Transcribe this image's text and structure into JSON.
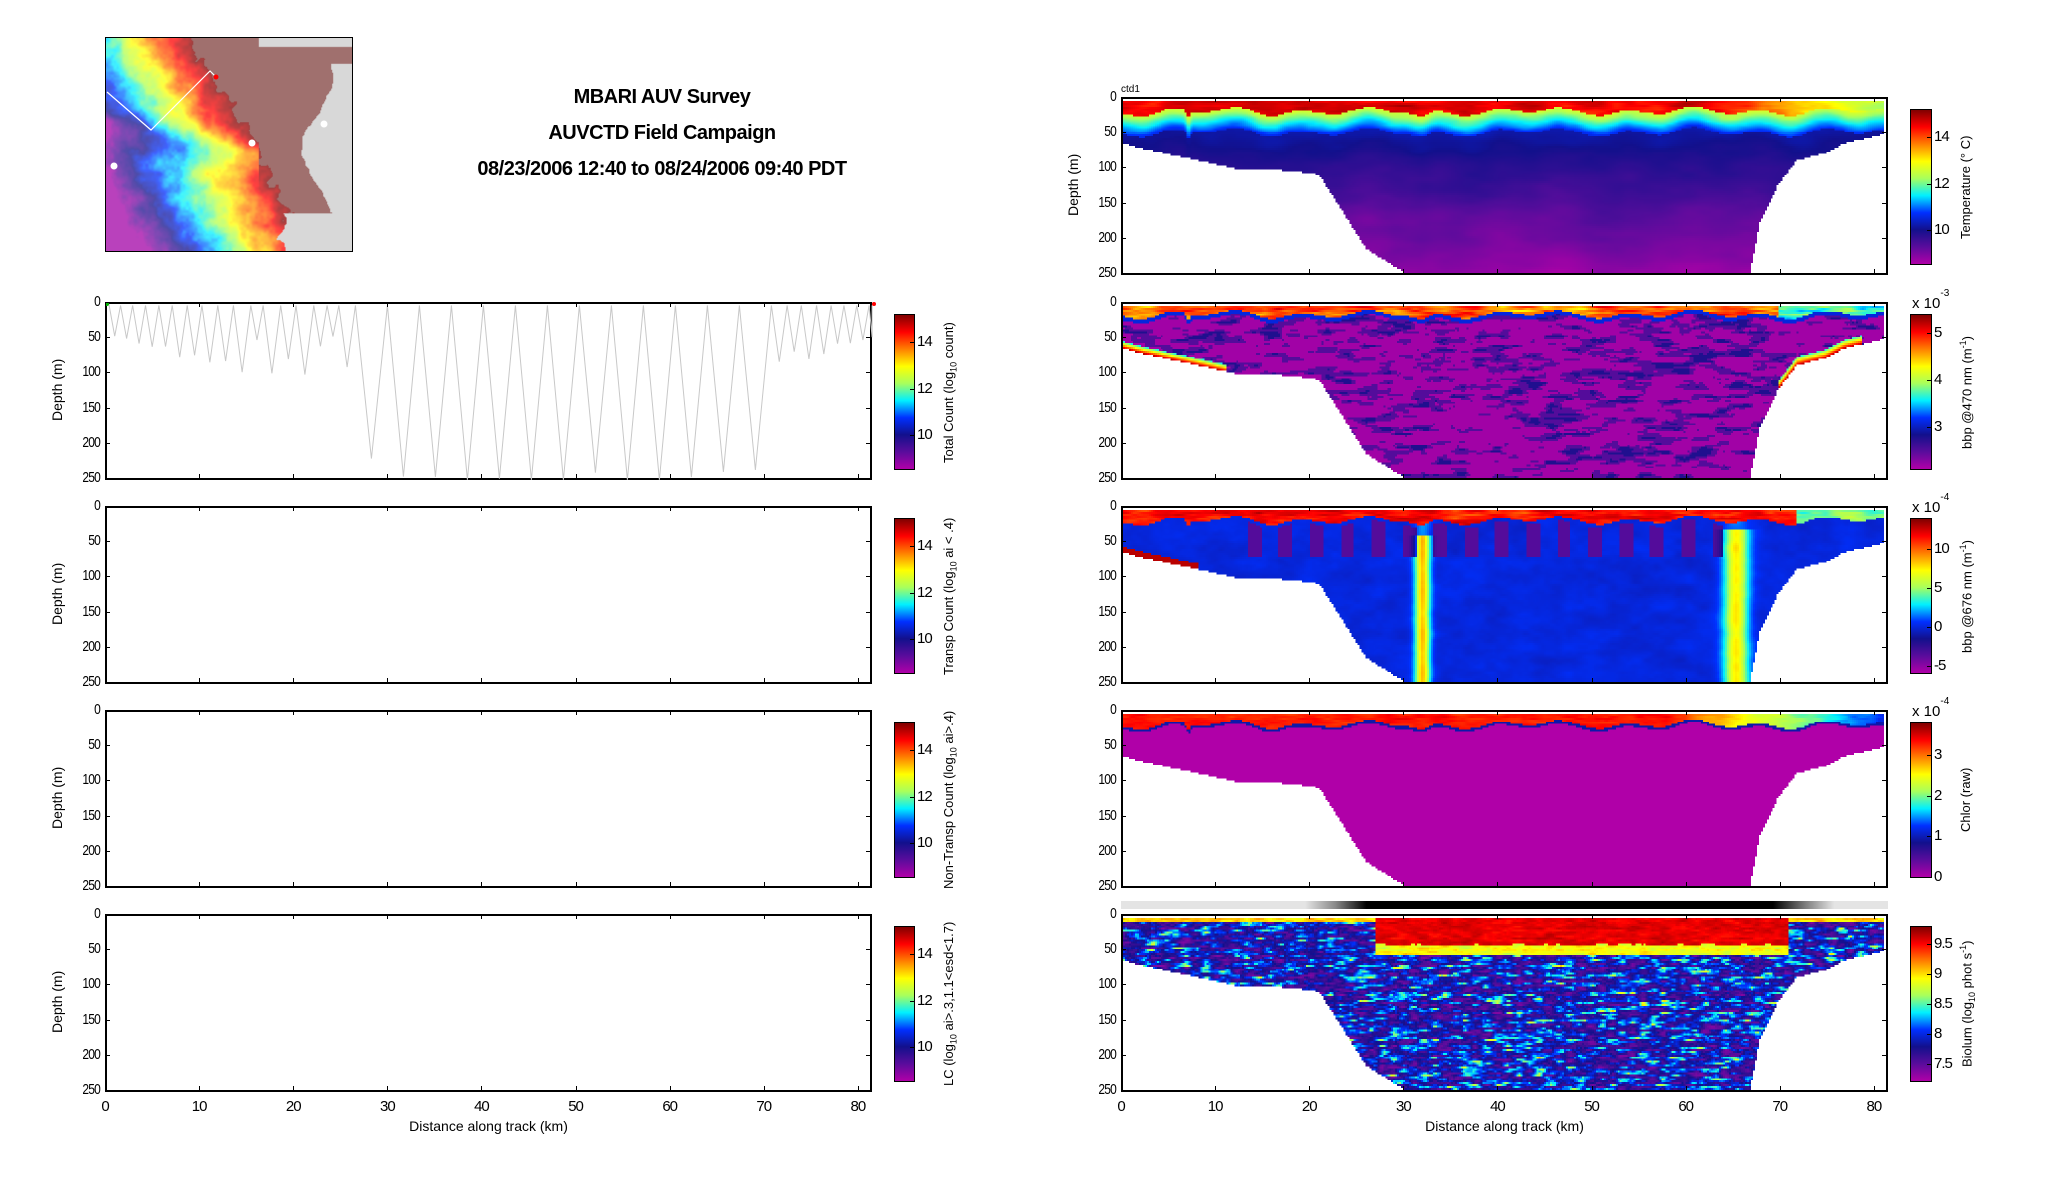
{
  "header": {
    "title1": "MBARI AUV Survey",
    "title2": "AUVCTD Field Campaign",
    "title3": "08/23/2006 12:40 to 08/24/2006 09:40 PDT"
  },
  "panel_tag": "ctd1",
  "axes": {
    "ylabel": "Depth (m)",
    "xlabel": "Distance along track (km)",
    "x_ticks": [
      "0",
      "10",
      "20",
      "30",
      "40",
      "50",
      "60",
      "70",
      "80"
    ],
    "y_ticks": [
      "0",
      "50",
      "100",
      "150",
      "200",
      "250"
    ],
    "xlim": [
      0,
      81.5
    ],
    "ylim": [
      0,
      250
    ]
  },
  "bottom_profile": {
    "km": [
      0,
      2,
      8,
      12,
      18,
      21,
      26,
      28,
      30,
      67,
      68,
      70,
      72,
      75,
      77,
      81.5
    ],
    "depth": [
      64,
      71,
      88,
      100,
      103,
      109,
      216,
      232,
      249,
      249,
      178,
      123,
      88,
      78,
      64,
      50
    ]
  },
  "colors": {
    "colormap": [
      "#b000a8",
      "#5a0c9c",
      "#12108c",
      "#0030ff",
      "#00f0ff",
      "#a8ff5c",
      "#ffff00",
      "#ff8000",
      "#ff0000",
      "#800000"
    ],
    "trace": "#c8c8c8",
    "start_marker": "#00b000",
    "end_marker": "#ff0000"
  },
  "chart_data": [
    {
      "type": "heatmap",
      "id": "total-count",
      "side": "left",
      "row": 1,
      "field": "none",
      "trace": "yoyo",
      "colorbar": {
        "segments": [
          {
            "t": "Total Count (log",
            "s": ""
          },
          {
            "t": "10",
            "s": "sub"
          },
          {
            "t": " count)",
            "s": ""
          }
        ],
        "ticks": [
          "10",
          "12",
          "14"
        ],
        "tick_values": [
          10,
          12,
          14
        ],
        "range": [
          8.5,
          15.2
        ],
        "exponent": null
      }
    },
    {
      "type": "heatmap",
      "id": "transp-count",
      "side": "left",
      "row": 2,
      "field": "none",
      "colorbar": {
        "segments": [
          {
            "t": "Transp Count (log",
            "s": ""
          },
          {
            "t": "10",
            "s": "sub"
          },
          {
            "t": " ai < .4)",
            "s": ""
          }
        ],
        "ticks": [
          "10",
          "12",
          "14"
        ],
        "tick_values": [
          10,
          12,
          14
        ],
        "range": [
          8.5,
          15.2
        ],
        "exponent": null
      }
    },
    {
      "type": "heatmap",
      "id": "non-transp-count",
      "side": "left",
      "row": 3,
      "field": "none",
      "colorbar": {
        "segments": [
          {
            "t": "Non-Transp Count (log",
            "s": ""
          },
          {
            "t": "10",
            "s": "sub"
          },
          {
            "t": " ai>.4)",
            "s": ""
          }
        ],
        "ticks": [
          "10",
          "12",
          "14"
        ],
        "tick_values": [
          10,
          12,
          14
        ],
        "range": [
          8.5,
          15.2
        ],
        "exponent": null
      }
    },
    {
      "type": "heatmap",
      "id": "lc",
      "side": "left",
      "row": 4,
      "field": "none",
      "colorbar": {
        "segments": [
          {
            "t": "LC (log",
            "s": ""
          },
          {
            "t": "10",
            "s": "sub"
          },
          {
            "t": " ai>.3,1.1<esd<1.7)",
            "s": ""
          }
        ],
        "ticks": [
          "10",
          "12",
          "14"
        ],
        "tick_values": [
          10,
          12,
          14
        ],
        "range": [
          8.5,
          15.2
        ],
        "exponent": null
      }
    },
    {
      "type": "heatmap",
      "id": "temperature",
      "side": "right",
      "row": 0,
      "field": "temp",
      "colorbar": {
        "segments": [
          {
            "t": "Temperature (° C)",
            "s": ""
          }
        ],
        "ticks": [
          "10",
          "12",
          "14"
        ],
        "tick_values": [
          10,
          12,
          14
        ],
        "range": [
          8.5,
          15.2
        ],
        "exponent": null
      }
    },
    {
      "type": "heatmap",
      "id": "bbp470",
      "side": "right",
      "row": 1,
      "field": "bbp470",
      "colorbar": {
        "segments": [
          {
            "t": "bbp @470 nm (m",
            "s": ""
          },
          {
            "t": "-1",
            "s": "sup"
          },
          {
            "t": ")",
            "s": ""
          }
        ],
        "ticks": [
          "3",
          "4",
          "5"
        ],
        "tick_values": [
          3,
          4,
          5
        ],
        "range": [
          2.1,
          5.4
        ],
        "exponent": {
          "base": "x 10",
          "power": "-3"
        }
      }
    },
    {
      "type": "heatmap",
      "id": "bbp676",
      "side": "right",
      "row": 2,
      "field": "bbp676",
      "colorbar": {
        "segments": [
          {
            "t": "bbp @676 nm (m",
            "s": ""
          },
          {
            "t": "-1",
            "s": "sup"
          },
          {
            "t": ")",
            "s": ""
          }
        ],
        "ticks": [
          "-5",
          "0",
          "5",
          "10"
        ],
        "tick_values": [
          -5,
          0,
          5,
          10
        ],
        "range": [
          -6,
          14
        ],
        "exponent": {
          "base": "x 10",
          "power": "-4"
        }
      }
    },
    {
      "type": "heatmap",
      "id": "chlor",
      "side": "right",
      "row": 3,
      "field": "chlor",
      "colorbar": {
        "segments": [
          {
            "t": "Chlor (raw)",
            "s": ""
          }
        ],
        "ticks": [
          "0",
          "1",
          "2",
          "3"
        ],
        "tick_values": [
          0,
          1,
          2,
          3
        ],
        "range": [
          -0.02,
          3.8
        ],
        "exponent": {
          "base": "x 10",
          "power": "-4"
        }
      }
    },
    {
      "type": "heatmap",
      "id": "biolum",
      "side": "right",
      "row": 4,
      "field": "biolum",
      "graybar": true,
      "colorbar": {
        "segments": [
          {
            "t": "Biolum (log",
            "s": ""
          },
          {
            "t": "10",
            "s": "sub"
          },
          {
            "t": " phot s",
            "s": ""
          },
          {
            "t": "-1",
            "s": "sup"
          },
          {
            "t": ")",
            "s": ""
          }
        ],
        "ticks": [
          "7.5",
          "8",
          "8.5",
          "9",
          "9.5"
        ],
        "tick_values": [
          7.5,
          8,
          8.5,
          9,
          9.5
        ],
        "range": [
          7.2,
          9.8
        ],
        "exponent": null
      }
    }
  ]
}
